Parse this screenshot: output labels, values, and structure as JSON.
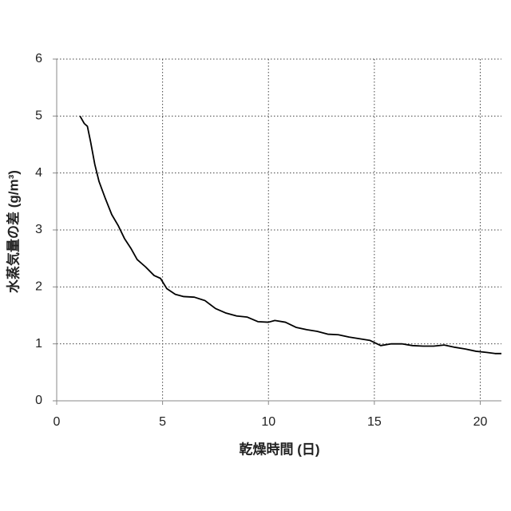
{
  "chart_data": {
    "type": "line",
    "xlabel": "乾燥時間 (日)",
    "ylabel": "水蒸気量の差 (g/m³)",
    "x": [
      1.1,
      1.3,
      1.45,
      1.6,
      1.8,
      2.0,
      2.3,
      2.6,
      2.9,
      3.2,
      3.5,
      3.8,
      4.2,
      4.6,
      4.9,
      5.2,
      5.6,
      6.0,
      6.5,
      7.0,
      7.5,
      8.0,
      8.5,
      9.0,
      9.5,
      10.0,
      10.3,
      10.8,
      11.3,
      11.8,
      12.3,
      12.8,
      13.3,
      13.8,
      14.3,
      14.8,
      15.3,
      15.8,
      16.3,
      16.8,
      17.3,
      17.8,
      18.3,
      18.8,
      19.3,
      19.8,
      20.3,
      20.7,
      21.0
    ],
    "values": [
      5.0,
      4.87,
      4.82,
      4.55,
      4.15,
      3.85,
      3.55,
      3.27,
      3.08,
      2.85,
      2.68,
      2.48,
      2.35,
      2.2,
      2.15,
      1.97,
      1.87,
      1.83,
      1.82,
      1.76,
      1.62,
      1.54,
      1.49,
      1.47,
      1.39,
      1.38,
      1.41,
      1.38,
      1.29,
      1.25,
      1.22,
      1.17,
      1.16,
      1.12,
      1.09,
      1.06,
      0.97,
      1.0,
      1.0,
      0.97,
      0.96,
      0.96,
      0.98,
      0.94,
      0.91,
      0.87,
      0.85,
      0.83,
      0.83
    ],
    "color": "#000000",
    "xlim": [
      0,
      21
    ],
    "xticks": [
      0,
      5,
      10,
      15,
      20
    ],
    "ylim": [
      0,
      6
    ],
    "yticks": [
      0,
      1,
      2,
      3,
      4,
      5,
      6
    ],
    "grid": true
  }
}
